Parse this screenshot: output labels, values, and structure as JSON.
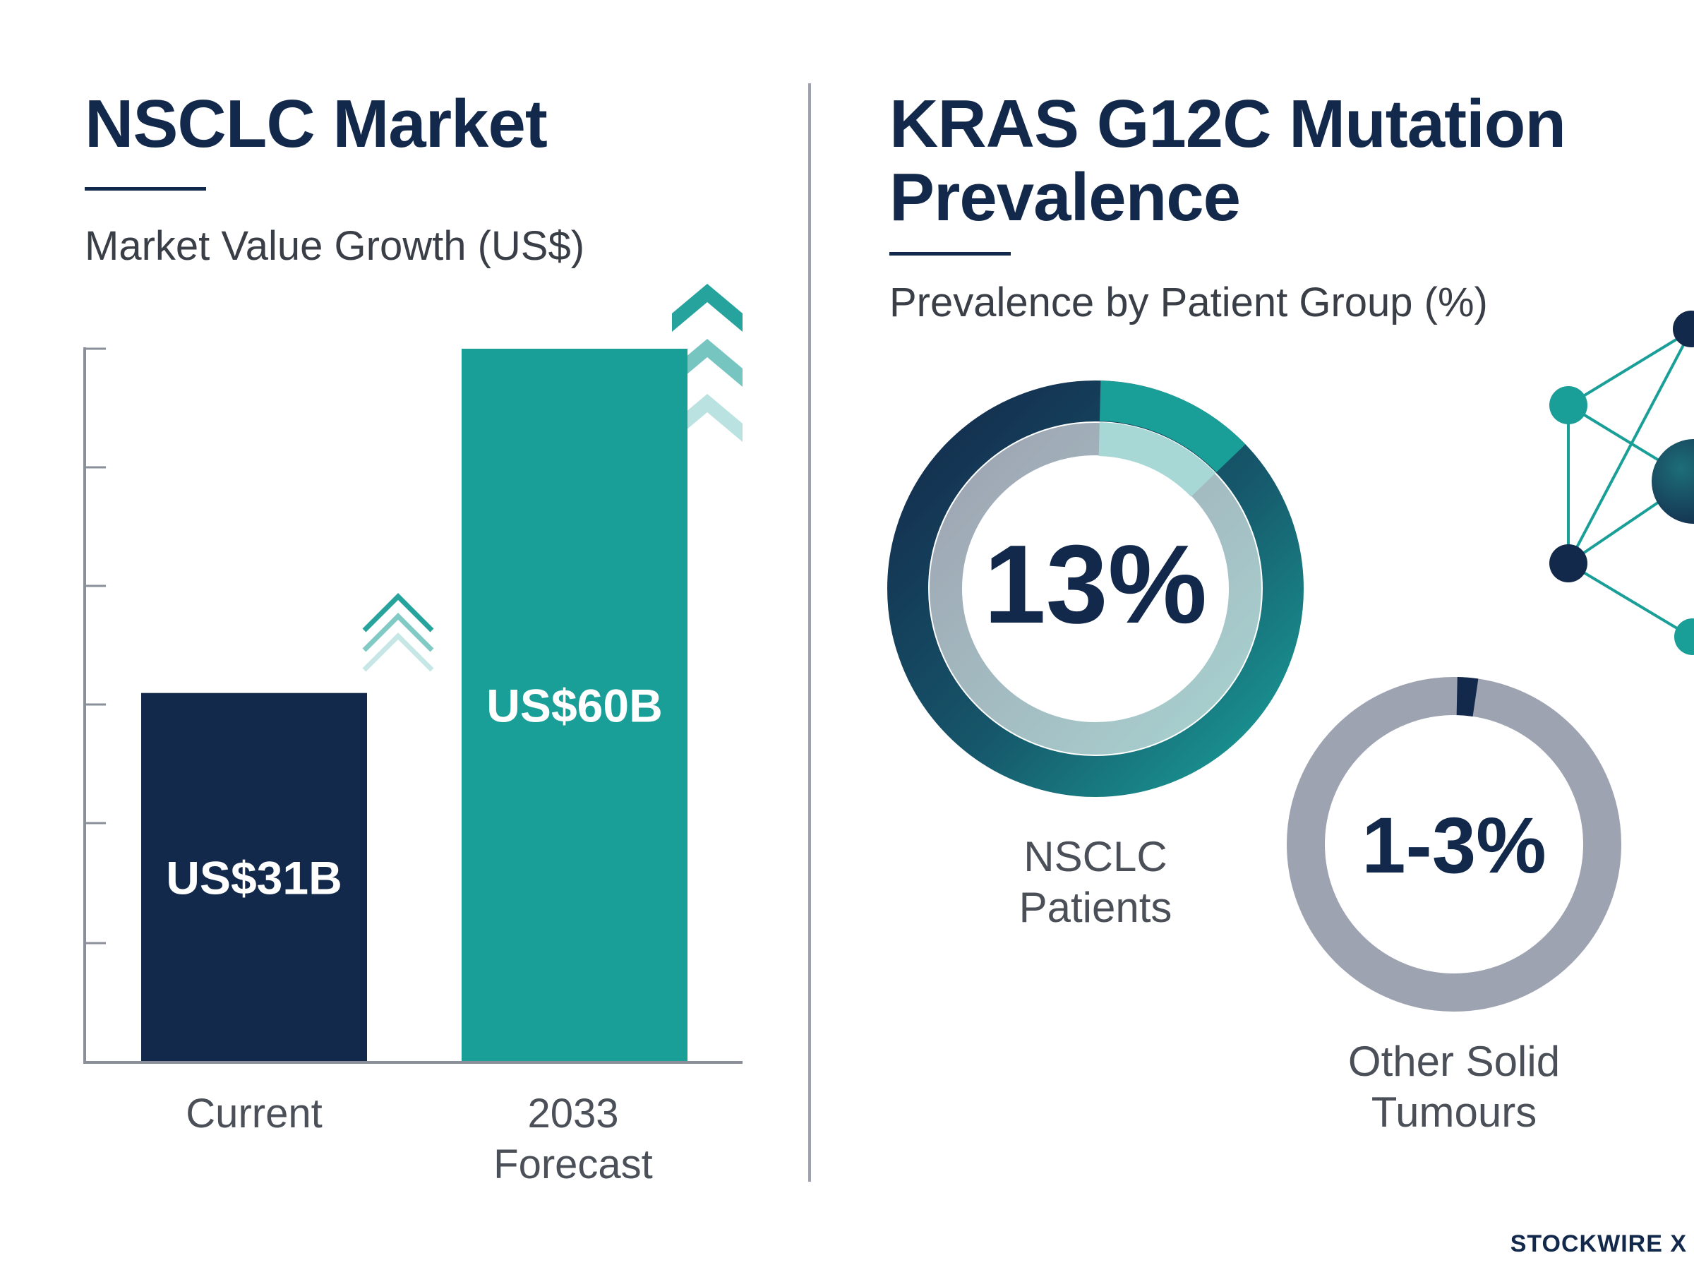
{
  "left_panel": {
    "title": "NSCLC Market",
    "subtitle": "Market Value Growth (US$)"
  },
  "right_panel": {
    "title_line1": "KRAS G12C Mutation",
    "title_line2": "Prevalence",
    "subtitle": "Prevalence by Patient Group (%)"
  },
  "brand": "STOCKWIRE X",
  "colors": {
    "navy": "#13294b",
    "teal": "#1a9e98",
    "grey": "#9ea3b1",
    "light_teal": "#a8d8d6"
  },
  "chart_data": [
    {
      "type": "bar",
      "title": "NSCLC Market",
      "subtitle": "Market Value Growth (US$)",
      "categories": [
        "Current",
        "2033 Forecast"
      ],
      "values": [
        31,
        60
      ],
      "value_labels": [
        "US$31B",
        "US$60B"
      ],
      "unit": "US$B",
      "ylim": [
        0,
        60
      ],
      "colors": [
        "#13294b",
        "#1a9e98"
      ]
    },
    {
      "type": "pie",
      "variant": "donut",
      "title": "KRAS G12C Mutation Prevalence",
      "subtitle": "Prevalence by Patient Group (%)",
      "series": [
        {
          "name": "NSCLC Patients",
          "label": "13%",
          "value": 13
        },
        {
          "name": "Other Solid Tumours",
          "label": "1-3%",
          "value_range": [
            1,
            3
          ]
        }
      ]
    }
  ]
}
